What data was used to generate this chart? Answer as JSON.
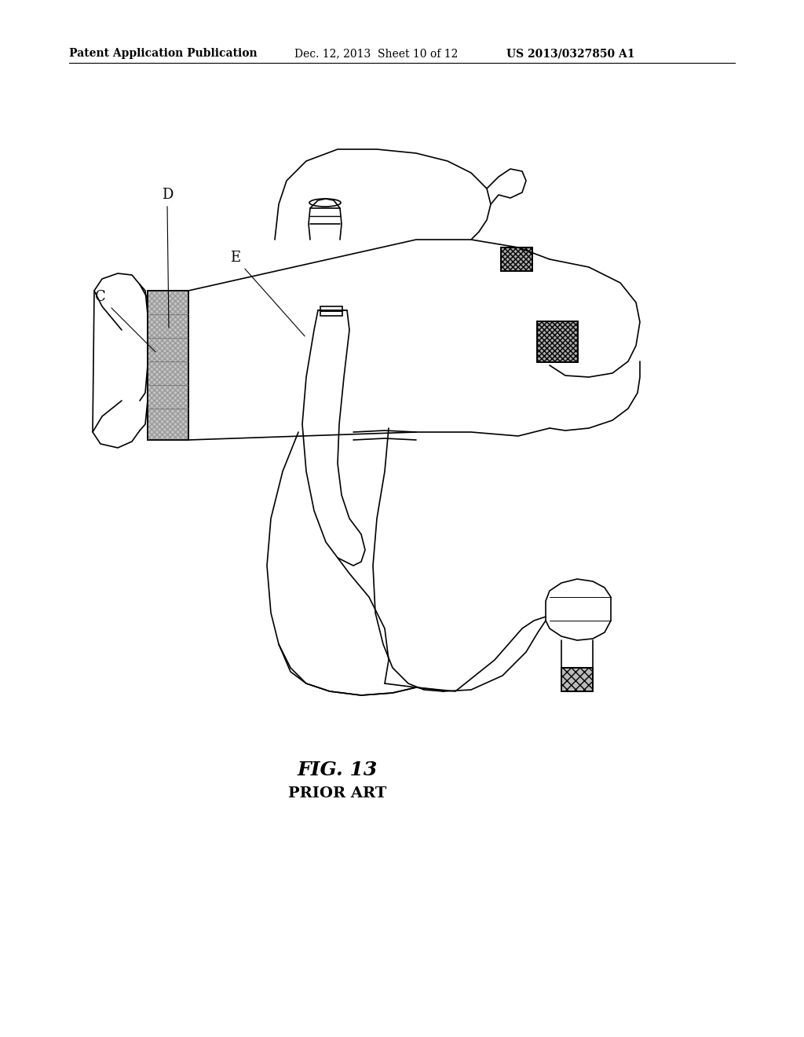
{
  "header_left": "Patent Application Publication",
  "header_mid": "Dec. 12, 2013  Sheet 10 of 12",
  "header_right": "US 2013/0327850 A1",
  "fig_label": "FIG. 13",
  "fig_sublabel": "PRIOR ART",
  "labels": [
    "C",
    "D",
    "E"
  ],
  "bg_color": "#ffffff",
  "line_color": "#000000",
  "hatch_color": "#555555",
  "header_fontsize": 10,
  "label_fontsize": 13,
  "fig_label_fontsize": 18,
  "fig_sublabel_fontsize": 14
}
